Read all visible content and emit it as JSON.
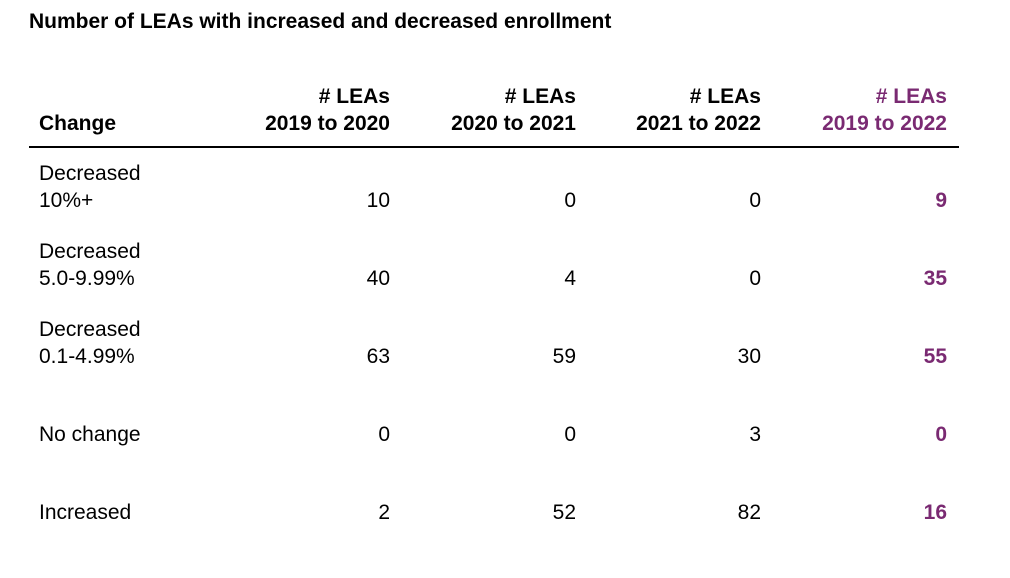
{
  "chart_data": {
    "type": "table",
    "title": "Number of LEAs with increased and decreased enrollment",
    "columns": [
      {
        "line1": "Change",
        "line2": ""
      },
      {
        "line1": "# LEAs",
        "line2": "2019 to 2020"
      },
      {
        "line1": "# LEAs",
        "line2": "2020 to 2021"
      },
      {
        "line1": "# LEAs",
        "line2": "2021 to 2022"
      },
      {
        "line1": "# LEAs",
        "line2": "2019 to 2022"
      }
    ],
    "rows": [
      {
        "label_line1": "Decreased",
        "label_line2": "10%+",
        "values": [
          10,
          0,
          0,
          9
        ]
      },
      {
        "label_line1": "Decreased",
        "label_line2": "5.0-9.99%",
        "values": [
          40,
          4,
          0,
          35
        ]
      },
      {
        "label_line1": "Decreased",
        "label_line2": "0.1-4.99%",
        "values": [
          63,
          59,
          30,
          55
        ]
      },
      {
        "label_line1": "No change",
        "label_line2": "",
        "values": [
          0,
          0,
          3,
          0
        ]
      },
      {
        "label_line1": "Increased",
        "label_line2": "",
        "values": [
          2,
          52,
          82,
          16
        ]
      }
    ],
    "accent_color": "#7a2a72"
  }
}
